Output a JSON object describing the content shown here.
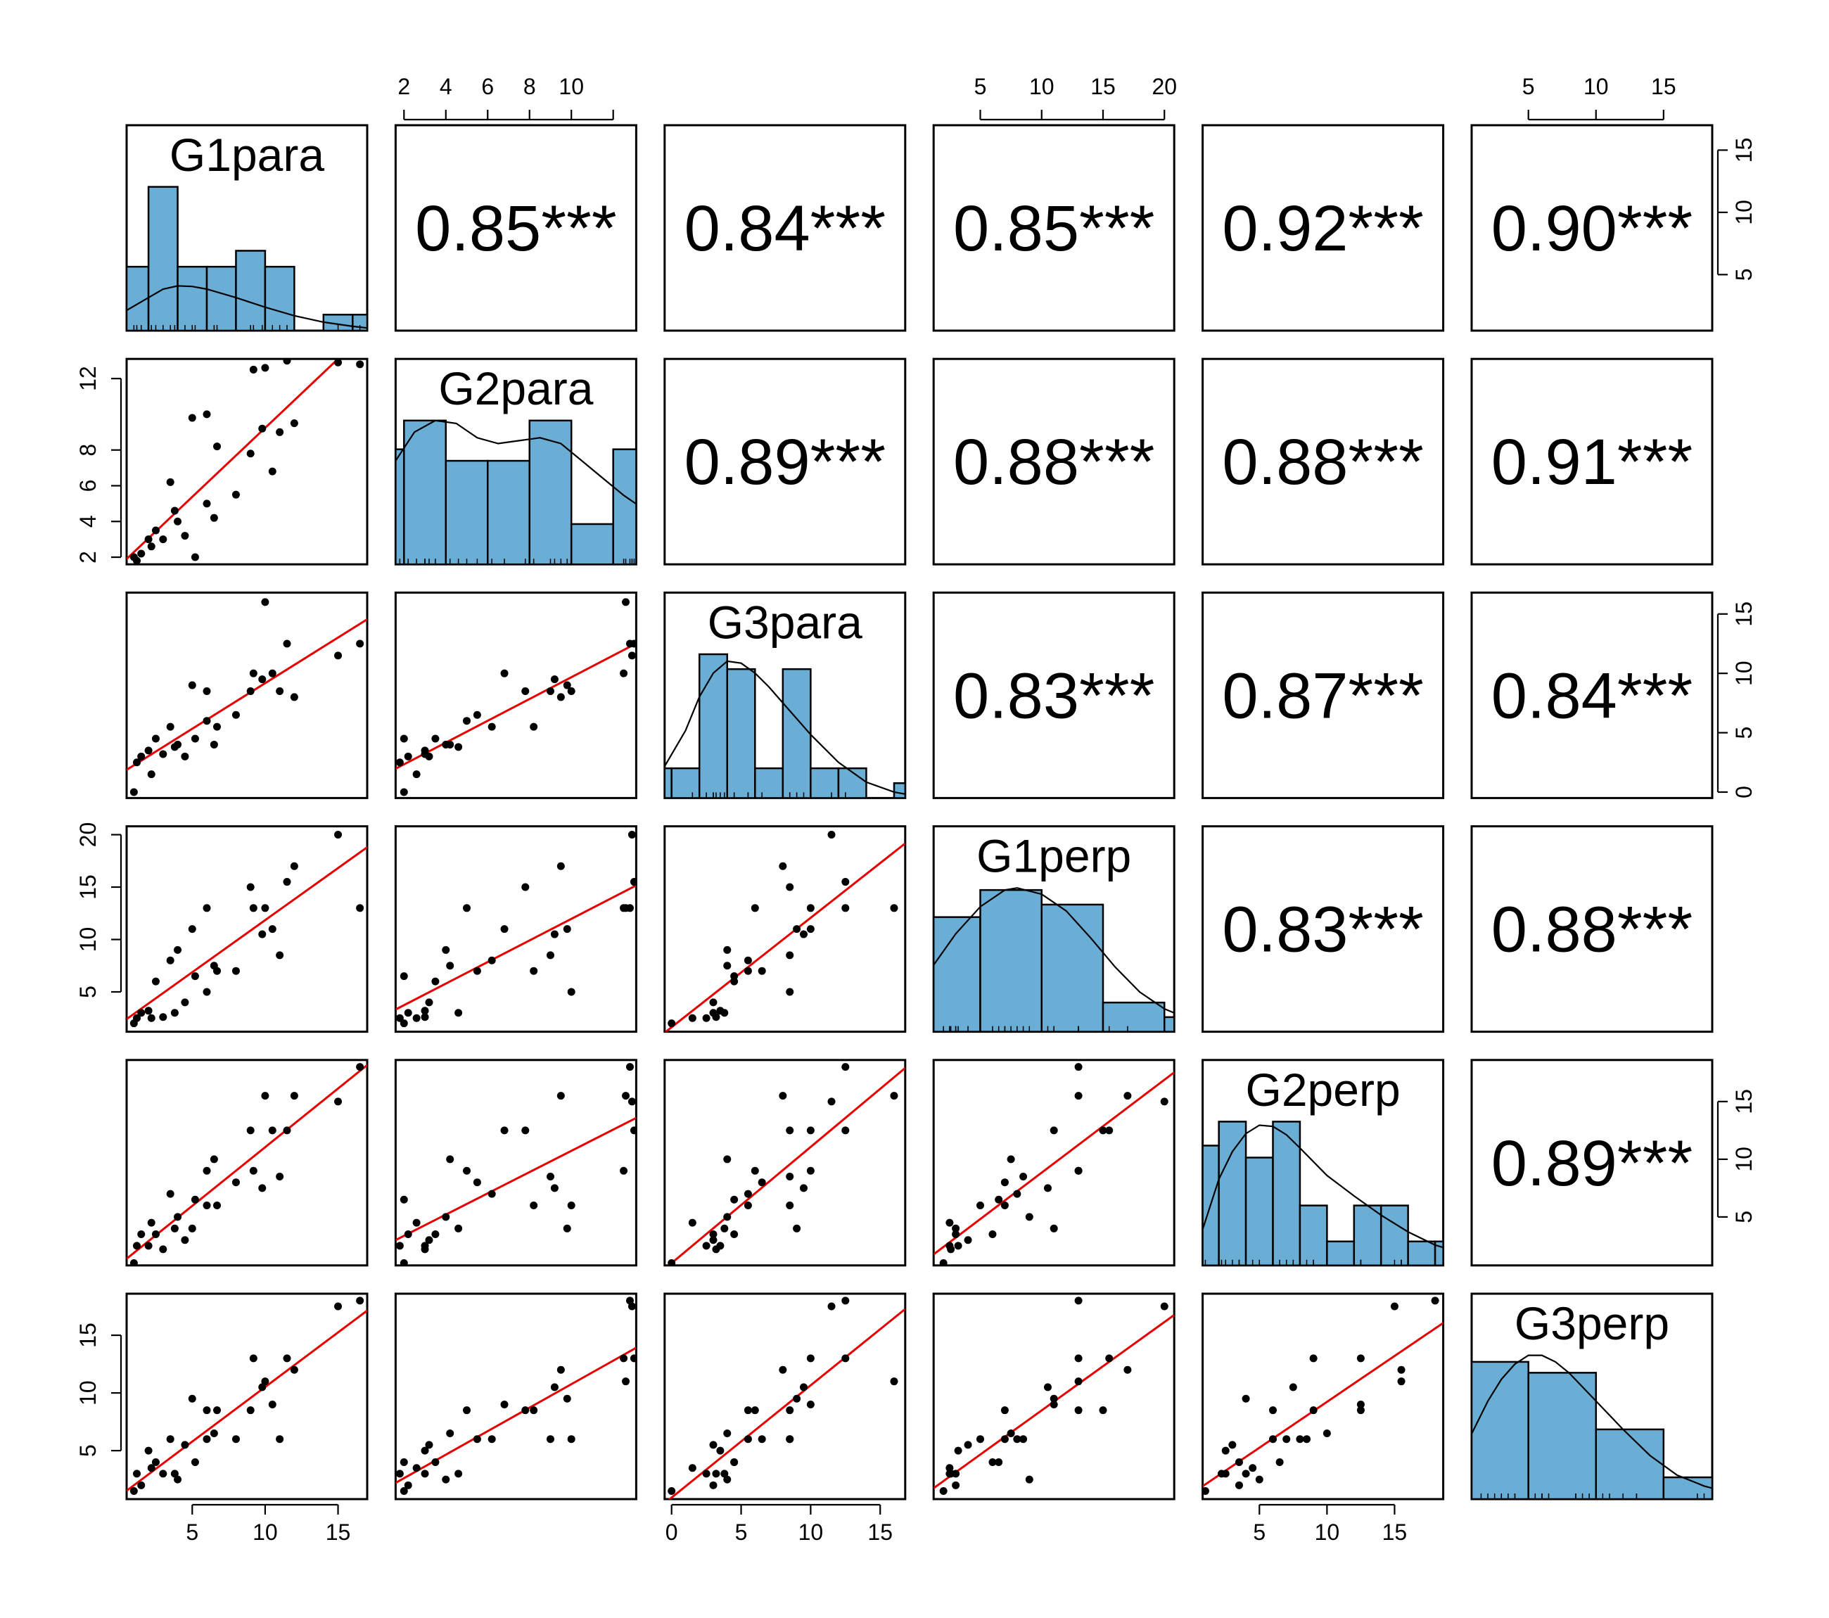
{
  "chart_data": {
    "type": "scatter",
    "title": "",
    "variables": [
      "G1para",
      "G2para",
      "G3para",
      "G1perp",
      "G2perp",
      "G3perp"
    ],
    "correlations": [
      {
        "row": 0,
        "col": 1,
        "label": "0.85***",
        "r": 0.85
      },
      {
        "row": 0,
        "col": 2,
        "label": "0.84***",
        "r": 0.84
      },
      {
        "row": 0,
        "col": 3,
        "label": "0.85***",
        "r": 0.85
      },
      {
        "row": 0,
        "col": 4,
        "label": "0.92***",
        "r": 0.92
      },
      {
        "row": 0,
        "col": 5,
        "label": "0.90***",
        "r": 0.9
      },
      {
        "row": 1,
        "col": 2,
        "label": "0.89***",
        "r": 0.89
      },
      {
        "row": 1,
        "col": 3,
        "label": "0.88***",
        "r": 0.88
      },
      {
        "row": 1,
        "col": 4,
        "label": "0.88***",
        "r": 0.88
      },
      {
        "row": 1,
        "col": 5,
        "label": "0.91***",
        "r": 0.91
      },
      {
        "row": 2,
        "col": 3,
        "label": "0.83***",
        "r": 0.83
      },
      {
        "row": 2,
        "col": 4,
        "label": "0.87***",
        "r": 0.87
      },
      {
        "row": 2,
        "col": 5,
        "label": "0.84***",
        "r": 0.84
      },
      {
        "row": 3,
        "col": 4,
        "label": "0.83***",
        "r": 0.83
      },
      {
        "row": 3,
        "col": 5,
        "label": "0.88***",
        "r": 0.88
      },
      {
        "row": 4,
        "col": 5,
        "label": "0.89***",
        "r": 0.89
      }
    ],
    "ranges": [
      [
        0.5,
        17.0
      ],
      [
        1.6,
        13.1
      ],
      [
        -0.5,
        16.8
      ],
      [
        1.2,
        20.8
      ],
      [
        0.8,
        18.6
      ],
      [
        0.8,
        18.6
      ]
    ],
    "axis_ticks": {
      "top": [
        {
          "col": 1,
          "ticks": [
            2,
            4,
            6,
            8,
            10,
            12
          ],
          "labels": [
            "2",
            "4",
            "6",
            "8",
            "10",
            ""
          ]
        },
        {
          "col": 3,
          "ticks": [
            5,
            10,
            15,
            20
          ],
          "labels": [
            "5",
            "10",
            "15",
            "20"
          ]
        },
        {
          "col": 5,
          "ticks": [
            5,
            10,
            15
          ],
          "labels": [
            "5",
            "10",
            "15"
          ]
        }
      ],
      "bottom": [
        {
          "col": 0,
          "ticks": [
            5,
            10,
            15
          ],
          "labels": [
            "5",
            "10",
            "15"
          ]
        },
        {
          "col": 2,
          "ticks": [
            0,
            5,
            10,
            15
          ],
          "labels": [
            "0",
            "5",
            "10",
            "15"
          ]
        },
        {
          "col": 4,
          "ticks": [
            5,
            10,
            15
          ],
          "labels": [
            "5",
            "10",
            "15"
          ]
        }
      ],
      "left": [
        {
          "row": 1,
          "ticks": [
            2,
            4,
            6,
            8,
            12
          ],
          "labels": [
            "2",
            "4",
            "6",
            "8",
            "12"
          ]
        },
        {
          "row": 3,
          "ticks": [
            5,
            10,
            15,
            20
          ],
          "labels": [
            "5",
            "10",
            "15",
            "20"
          ]
        },
        {
          "row": 5,
          "ticks": [
            5,
            10,
            15
          ],
          "labels": [
            "5",
            "10",
            "15"
          ]
        }
      ],
      "right": [
        {
          "row": 0,
          "ticks": [
            5,
            10,
            15
          ],
          "labels": [
            "5",
            "10",
            "15"
          ]
        },
        {
          "row": 2,
          "ticks": [
            0,
            5,
            10,
            15
          ],
          "labels": [
            "0",
            "5",
            "10",
            "15"
          ]
        },
        {
          "row": 4,
          "ticks": [
            5,
            10,
            15
          ],
          "labels": [
            "5",
            "10",
            "15"
          ]
        }
      ]
    },
    "histograms": [
      {
        "var": "G1para",
        "edges": [
          0.5,
          2,
          4,
          6,
          8,
          10,
          12,
          14,
          16,
          17
        ],
        "counts": [
          1.2,
          2.7,
          1.2,
          1.2,
          1.5,
          1.2,
          0,
          0.3,
          0.3
        ],
        "density": [
          [
            0.5,
            0.38
          ],
          [
            2,
            0.62
          ],
          [
            3,
            0.78
          ],
          [
            4,
            0.84
          ],
          [
            5,
            0.83
          ],
          [
            6,
            0.78
          ],
          [
            8,
            0.62
          ],
          [
            10,
            0.44
          ],
          [
            12,
            0.28
          ],
          [
            14,
            0.16
          ],
          [
            16,
            0.08
          ],
          [
            17,
            0.05
          ]
        ]
      },
      {
        "var": "G2para",
        "edges": [
          1.6,
          2,
          4,
          6,
          8,
          10,
          12,
          13.1
        ],
        "counts": [
          0.4,
          0.5,
          0.36,
          0.36,
          0.5,
          0.14,
          0.4
        ],
        "density": [
          [
            1.6,
            0.36
          ],
          [
            2.5,
            0.46
          ],
          [
            3.5,
            0.5
          ],
          [
            4.5,
            0.49
          ],
          [
            5.5,
            0.44
          ],
          [
            6.5,
            0.42
          ],
          [
            7.5,
            0.43
          ],
          [
            8.5,
            0.44
          ],
          [
            9.5,
            0.42
          ],
          [
            10.5,
            0.36
          ],
          [
            11.5,
            0.3
          ],
          [
            12.5,
            0.24
          ],
          [
            13.1,
            0.21
          ]
        ]
      },
      {
        "var": "G3para",
        "edges": [
          -0.5,
          0,
          2,
          4,
          6,
          8,
          10,
          12,
          14,
          16,
          16.8
        ],
        "counts": [
          0.3,
          0.3,
          1.45,
          1.3,
          0.3,
          1.3,
          0.3,
          0.3,
          0,
          0.15
        ],
        "density": [
          [
            -0.5,
            0.32
          ],
          [
            1,
            0.68
          ],
          [
            2,
            1.02
          ],
          [
            3,
            1.26
          ],
          [
            4,
            1.38
          ],
          [
            5,
            1.36
          ],
          [
            6,
            1.26
          ],
          [
            7,
            1.12
          ],
          [
            8,
            0.96
          ],
          [
            10,
            0.64
          ],
          [
            12,
            0.36
          ],
          [
            14,
            0.16
          ],
          [
            16,
            0.06
          ],
          [
            16.8,
            0.04
          ]
        ]
      },
      {
        "var": "G1perp",
        "edges": [
          1.2,
          5,
          10,
          15,
          20,
          20.8
        ],
        "counts": [
          0.055,
          0.068,
          0.061,
          0.014,
          0.007
        ],
        "density": [
          [
            1.2,
            0.032
          ],
          [
            3,
            0.047
          ],
          [
            5,
            0.06
          ],
          [
            7,
            0.068
          ],
          [
            8,
            0.069
          ],
          [
            10,
            0.066
          ],
          [
            12,
            0.058
          ],
          [
            14,
            0.045
          ],
          [
            16,
            0.031
          ],
          [
            18,
            0.019
          ],
          [
            20,
            0.011
          ],
          [
            20.8,
            0.009
          ]
        ]
      },
      {
        "var": "G2perp",
        "edges": [
          0.8,
          2,
          4,
          6,
          8,
          10,
          12,
          14,
          16,
          18,
          18.6
        ],
        "counts": [
          0.1,
          0.12,
          0.09,
          0.12,
          0.05,
          0.02,
          0.05,
          0.05,
          0.02,
          0.02
        ],
        "density": [
          [
            0.8,
            0.03
          ],
          [
            2,
            0.072
          ],
          [
            3,
            0.095
          ],
          [
            4,
            0.11
          ],
          [
            5,
            0.117
          ],
          [
            6,
            0.116
          ],
          [
            7,
            0.109
          ],
          [
            8,
            0.098
          ],
          [
            10,
            0.075
          ],
          [
            12,
            0.058
          ],
          [
            14,
            0.042
          ],
          [
            16,
            0.028
          ],
          [
            18,
            0.017
          ],
          [
            18.6,
            0.015
          ]
        ]
      },
      {
        "var": "G3perp",
        "edges": [
          0.8,
          5,
          10,
          15,
          18.6
        ],
        "counts": [
          0.063,
          0.058,
          0.032,
          0.01
        ],
        "density": [
          [
            0.8,
            0.03
          ],
          [
            2,
            0.045
          ],
          [
            3,
            0.055
          ],
          [
            4,
            0.062
          ],
          [
            5,
            0.066
          ],
          [
            6,
            0.066
          ],
          [
            7,
            0.063
          ],
          [
            8,
            0.058
          ],
          [
            10,
            0.045
          ],
          [
            12,
            0.032
          ],
          [
            14,
            0.02
          ],
          [
            16,
            0.011
          ],
          [
            18,
            0.006
          ],
          [
            18.6,
            0.005
          ]
        ]
      }
    ],
    "observations": [
      [
        1.0,
        2.0,
        0.0,
        2.0,
        1.0,
        1.5
      ],
      [
        1.2,
        1.8,
        2.5,
        2.5,
        2.5,
        3.0
      ],
      [
        1.5,
        2.2,
        3.0,
        3.0,
        3.5,
        2.0
      ],
      [
        2.0,
        3.0,
        3.5,
        3.2,
        2.5,
        5.0
      ],
      [
        2.2,
        2.6,
        1.5,
        2.5,
        4.5,
        3.5
      ],
      [
        2.5,
        3.5,
        4.5,
        6.0,
        3.5,
        4.0
      ],
      [
        3.0,
        3.0,
        3.2,
        2.6,
        2.2,
        3.0
      ],
      [
        3.5,
        6.2,
        5.5,
        8.0,
        7.0,
        6.0
      ],
      [
        3.8,
        4.6,
        3.8,
        3.0,
        4.0,
        3.0
      ],
      [
        4.0,
        4.0,
        4.0,
        9.0,
        5.0,
        2.5
      ],
      [
        5.0,
        9.8,
        9.0,
        11.0,
        4.0,
        9.5
      ],
      [
        5.2,
        2.0,
        4.5,
        6.5,
        6.5,
        4.0
      ],
      [
        6.0,
        5.0,
        6.0,
        13.0,
        9.0,
        8.5
      ],
      [
        6.5,
        4.2,
        4.0,
        7.5,
        10.0,
        6.5
      ],
      [
        6.7,
        8.2,
        5.5,
        7.0,
        6.0,
        8.5
      ],
      [
        6.0,
        10.0,
        8.5,
        5.0,
        6.0,
        6.0
      ],
      [
        8.0,
        5.5,
        6.5,
        7.0,
        8.0,
        6.0
      ],
      [
        9.0,
        7.8,
        8.5,
        15.0,
        12.5,
        8.5
      ],
      [
        9.2,
        12.5,
        10.0,
        13.0,
        9.0,
        13.0
      ],
      [
        10.0,
        12.6,
        16.0,
        13.0,
        15.5,
        11.0
      ],
      [
        10.5,
        6.8,
        10.0,
        11.0,
        12.5,
        9.0
      ],
      [
        11.0,
        9.0,
        8.5,
        8.5,
        8.5,
        6.0
      ],
      [
        11.5,
        13.0,
        12.5,
        15.5,
        12.5,
        13.0
      ],
      [
        12.0,
        9.5,
        8.0,
        17.0,
        15.5,
        12.0
      ],
      [
        15.0,
        12.9,
        11.5,
        20.0,
        15.0,
        17.5
      ],
      [
        16.5,
        12.8,
        12.5,
        13.0,
        18.0,
        18.0
      ],
      [
        9.8,
        9.2,
        9.5,
        10.5,
        7.5,
        10.5
      ],
      [
        4.5,
        3.2,
        3.0,
        4.0,
        3.0,
        5.5
      ]
    ],
    "xlabel": "",
    "ylabel": "",
    "grid": false
  }
}
